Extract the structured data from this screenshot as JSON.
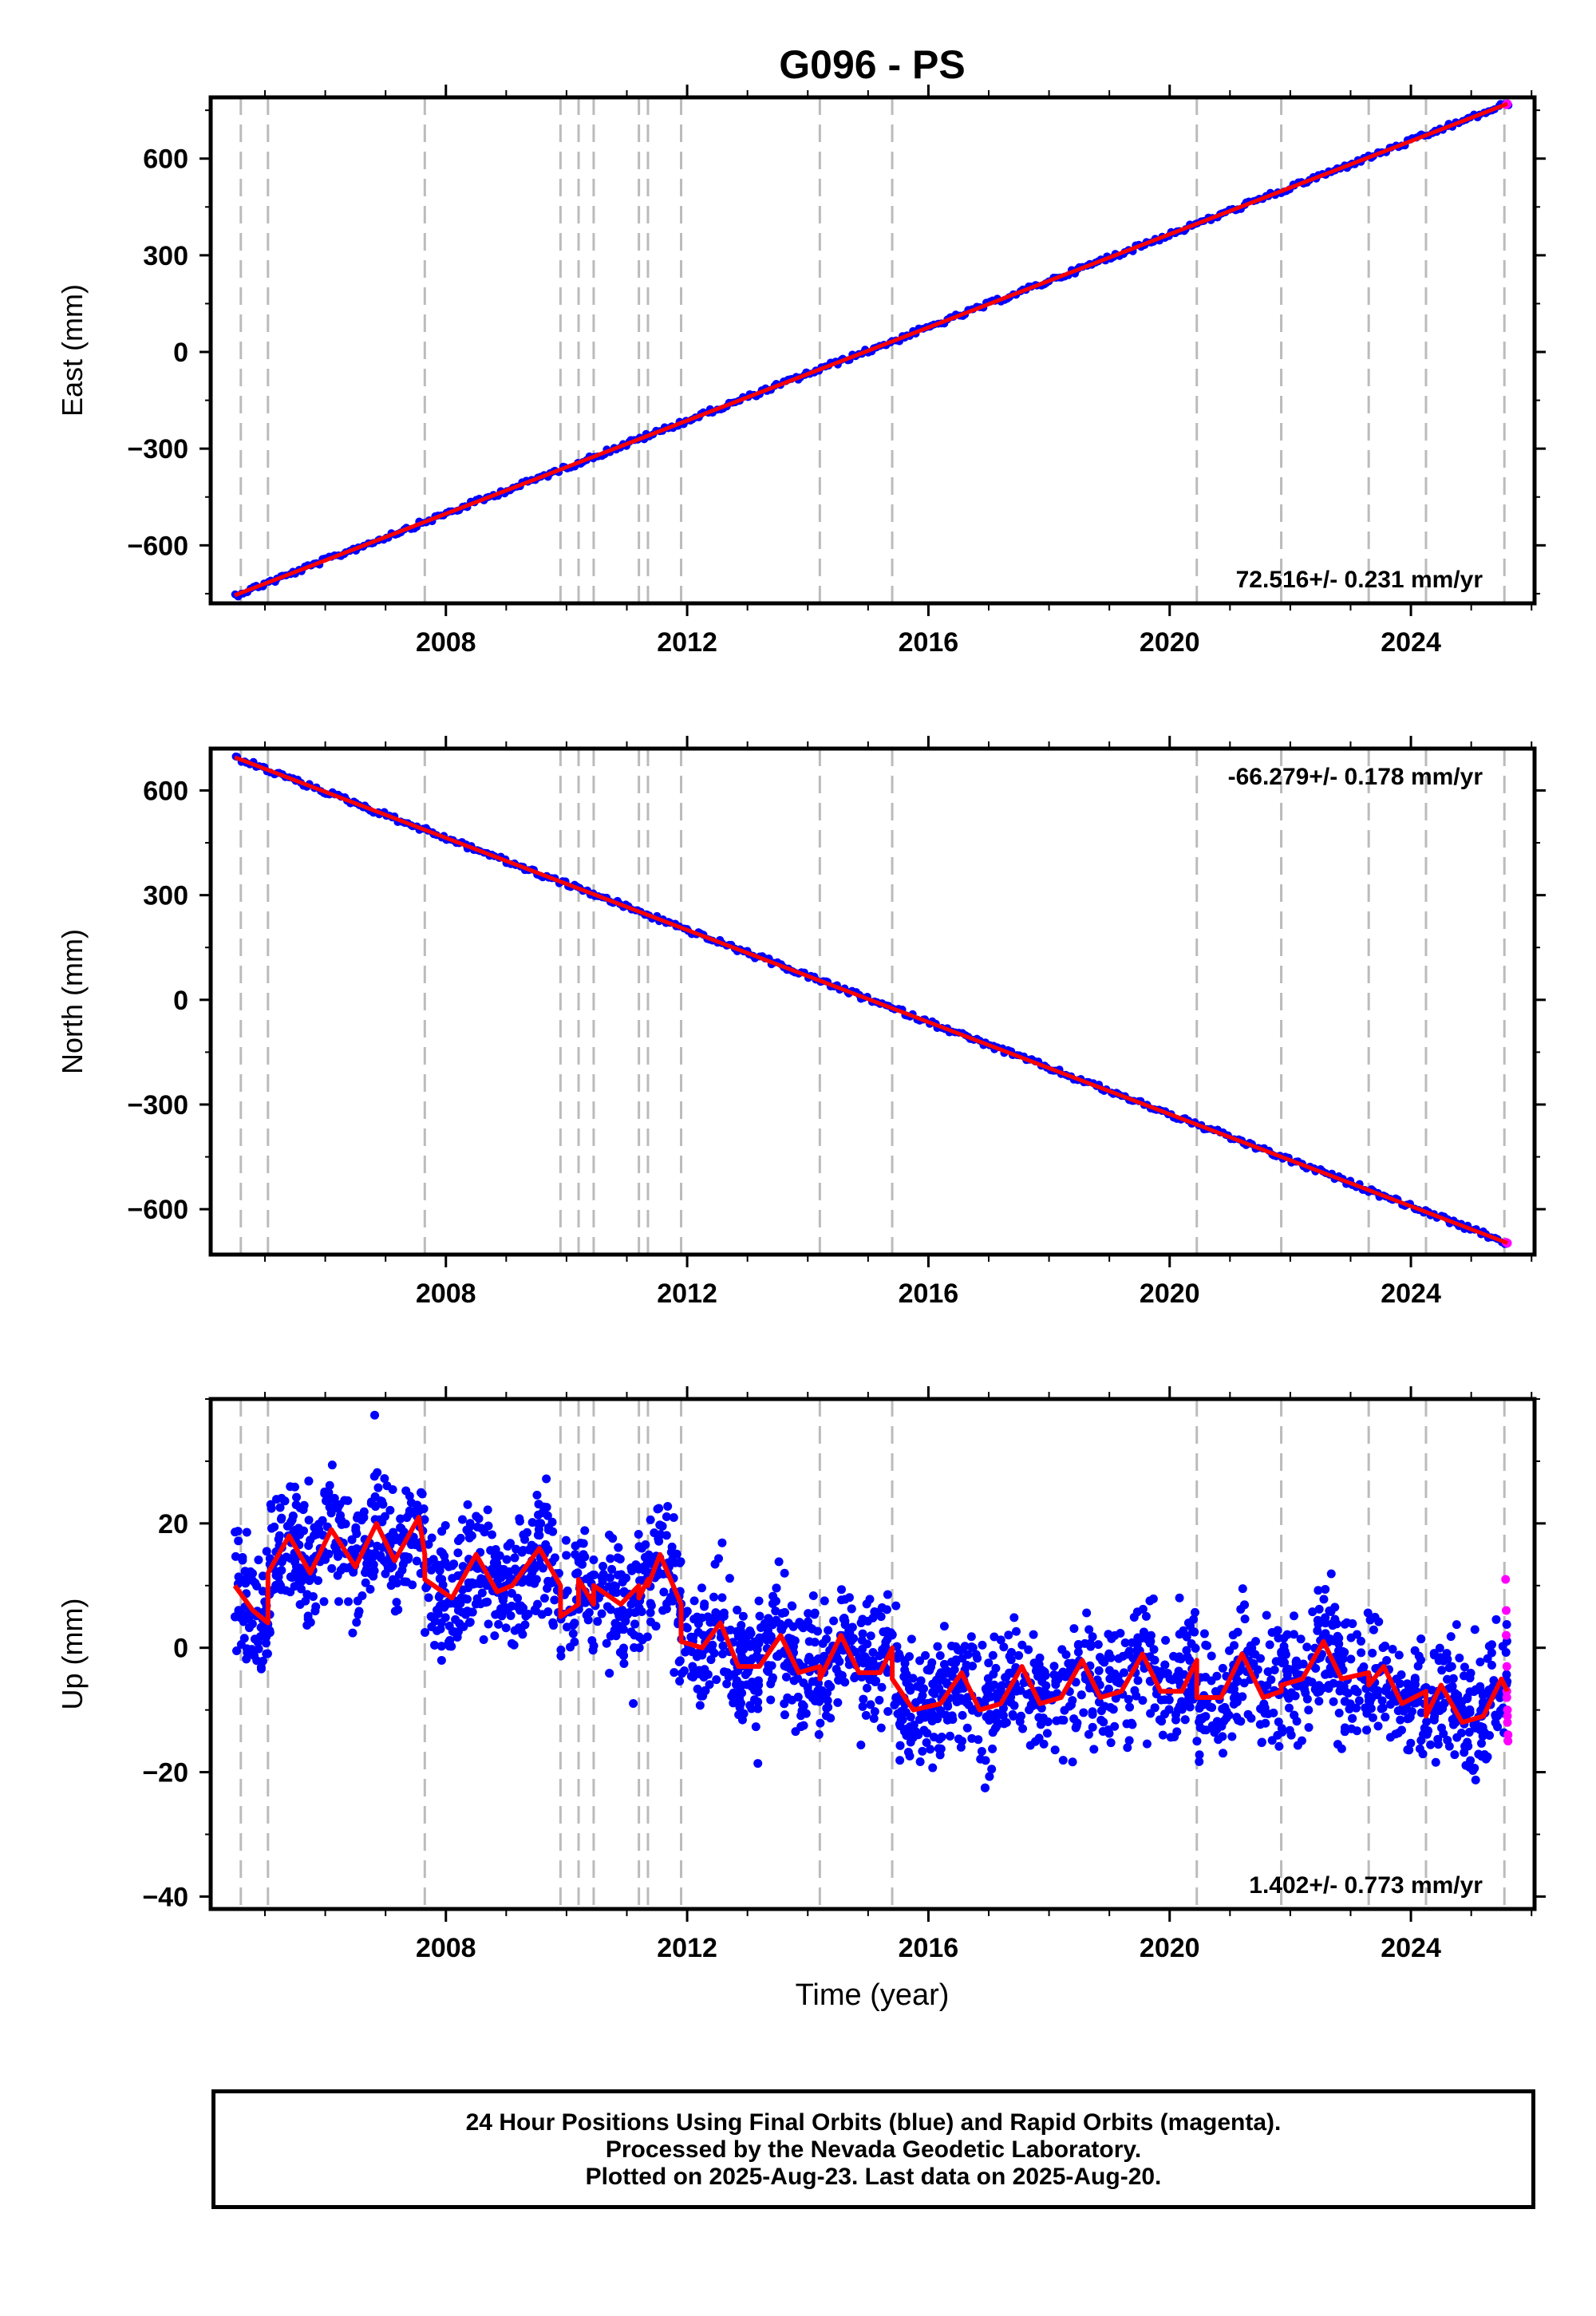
{
  "title": "G096 - PS",
  "colors": {
    "final": "#0000ff",
    "rapid": "#ff00ff",
    "model": "#ff0000",
    "gridline": "#bbbbbb",
    "frame": "#000000"
  },
  "x_axis": {
    "label": "Time (year)",
    "ticks": [
      "2008",
      "2012",
      "2016",
      "2020",
      "2024"
    ]
  },
  "equipment_change_lines": [
    2004.6,
    2005.05,
    2007.65,
    2009.9,
    2010.2,
    2010.45,
    2011.2,
    2011.35,
    2011.9,
    2014.2,
    2015.4,
    2020.45,
    2021.85,
    2023.3,
    2024.25,
    2025.55
  ],
  "footer": {
    "line1": "24 Hour Positions Using Final Orbits (blue) and Rapid Orbits (magenta).",
    "line2": "Processed by the Nevada Geodetic Laboratory.",
    "line3": "Plotted on 2025-Aug-23. Last data on 2025-Aug-20."
  },
  "chart_data": [
    {
      "type": "scatter",
      "ylabel": "East (mm)",
      "xlim": [
        2004.1,
        2026.05
      ],
      "ylim": [
        -780,
        790
      ],
      "yticks": [
        "600",
        "300",
        "0",
        "−300",
        "−600"
      ],
      "ytick_values": [
        600,
        300,
        0,
        -300,
        -600
      ],
      "rate_label": "72.516+/- 0.231 mm/yr",
      "rate_position": "bottom-right",
      "series": [
        {
          "name": "Final Orbits",
          "color": "blue",
          "trend": {
            "x_start": 2004.5,
            "x_end": 2025.6,
            "y_start": -755,
            "y_end": 770
          }
        },
        {
          "name": "Rapid Orbits",
          "color": "magenta",
          "points": [
            [
              2025.58,
              767
            ],
            [
              2025.6,
              770
            ]
          ]
        }
      ],
      "model": {
        "color": "red",
        "x": [
          2004.5,
          2025.6
        ],
        "y": [
          -755,
          770
        ]
      }
    },
    {
      "type": "scatter",
      "ylabel": "North (mm)",
      "xlim": [
        2004.1,
        2026.05
      ],
      "ylim": [
        -730,
        720
      ],
      "yticks": [
        "600",
        "300",
        "0",
        "−300",
        "−600"
      ],
      "ytick_values": [
        600,
        300,
        0,
        -300,
        -600
      ],
      "rate_label": "-66.279+/- 0.178 mm/yr",
      "rate_position": "top-right",
      "series": [
        {
          "name": "Final Orbits",
          "color": "blue",
          "trend": {
            "x_start": 2004.5,
            "x_end": 2025.6,
            "y_start": 695,
            "y_end": -697
          }
        },
        {
          "name": "Rapid Orbits",
          "color": "magenta",
          "points": [
            [
              2025.58,
              -695
            ],
            [
              2025.6,
              -697
            ]
          ]
        }
      ],
      "model": {
        "color": "red",
        "x": [
          2004.5,
          2025.6
        ],
        "y": [
          695,
          -697
        ]
      }
    },
    {
      "type": "scatter",
      "ylabel": "Up (mm)",
      "xlim": [
        2004.1,
        2026.05
      ],
      "ylim": [
        -42,
        40
      ],
      "yticks": [
        "20",
        "0",
        "−20",
        "−40"
      ],
      "ytick_values": [
        20,
        0,
        -20,
        -40
      ],
      "rate_label": "1.402+/- 0.773 mm/yr",
      "rate_position": "bottom-right",
      "series": [
        {
          "name": "Final Orbits",
          "color": "blue",
          "scatter_sd_mm": 5
        },
        {
          "name": "Rapid Orbits",
          "color": "magenta",
          "points": [
            [
              2025.57,
              11
            ],
            [
              2025.58,
              6
            ],
            [
              2025.58,
              2
            ],
            [
              2025.59,
              -3
            ],
            [
              2025.59,
              -7
            ],
            [
              2025.6,
              -10
            ],
            [
              2025.6,
              -12
            ],
            [
              2025.61,
              -14
            ],
            [
              2025.61,
              -15
            ],
            [
              2025.6,
              -11
            ],
            [
              2025.59,
              -8
            ]
          ]
        }
      ],
      "model": {
        "color": "red",
        "x": [
          2004.5,
          2004.8,
          2005.05,
          2005.05,
          2005.4,
          2005.75,
          2006.1,
          2006.5,
          2006.85,
          2007.15,
          2007.55,
          2007.65,
          2007.65,
          2008.1,
          2008.5,
          2008.85,
          2009.1,
          2009.55,
          2009.9,
          2009.9,
          2010.2,
          2010.2,
          2010.45,
          2010.45,
          2010.6,
          2010.9,
          2011.2,
          2011.2,
          2011.35,
          2011.35,
          2011.55,
          2011.9,
          2011.9,
          2012.25,
          2012.55,
          2012.85,
          2013.2,
          2013.55,
          2013.85,
          2014.2,
          2014.2,
          2014.55,
          2014.85,
          2015.2,
          2015.4,
          2015.4,
          2015.75,
          2016.2,
          2016.55,
          2016.85,
          2017.2,
          2017.55,
          2017.85,
          2018.2,
          2018.55,
          2018.85,
          2019.2,
          2019.55,
          2019.85,
          2020.2,
          2020.45,
          2020.45,
          2020.85,
          2021.2,
          2021.55,
          2021.85,
          2021.85,
          2022.2,
          2022.55,
          2022.85,
          2023.3,
          2023.3,
          2023.55,
          2023.85,
          2024.25,
          2024.25,
          2024.5,
          2024.85,
          2025.2,
          2025.5,
          2025.6
        ],
        "y": [
          10,
          6,
          4,
          12,
          18,
          12,
          19,
          13,
          20,
          14,
          21,
          15,
          11,
          8,
          15,
          9,
          10,
          16,
          10,
          5,
          7,
          11,
          7,
          10,
          9,
          7,
          10,
          8,
          11,
          10,
          15,
          7,
          1,
          0,
          4,
          -3,
          -3,
          2,
          -4,
          -3,
          -5,
          2,
          -4,
          -4,
          0,
          -5,
          -10,
          -9,
          -4,
          -10,
          -9,
          -3,
          -9,
          -8,
          -2,
          -8,
          -7,
          -1,
          -7,
          -7,
          -2,
          -8,
          -8,
          -1,
          -8,
          -7,
          -6,
          -5,
          1,
          -5,
          -4,
          -6,
          -3,
          -9,
          -7,
          -11,
          -6,
          -12,
          -11,
          -5,
          -7
        ]
      }
    }
  ]
}
